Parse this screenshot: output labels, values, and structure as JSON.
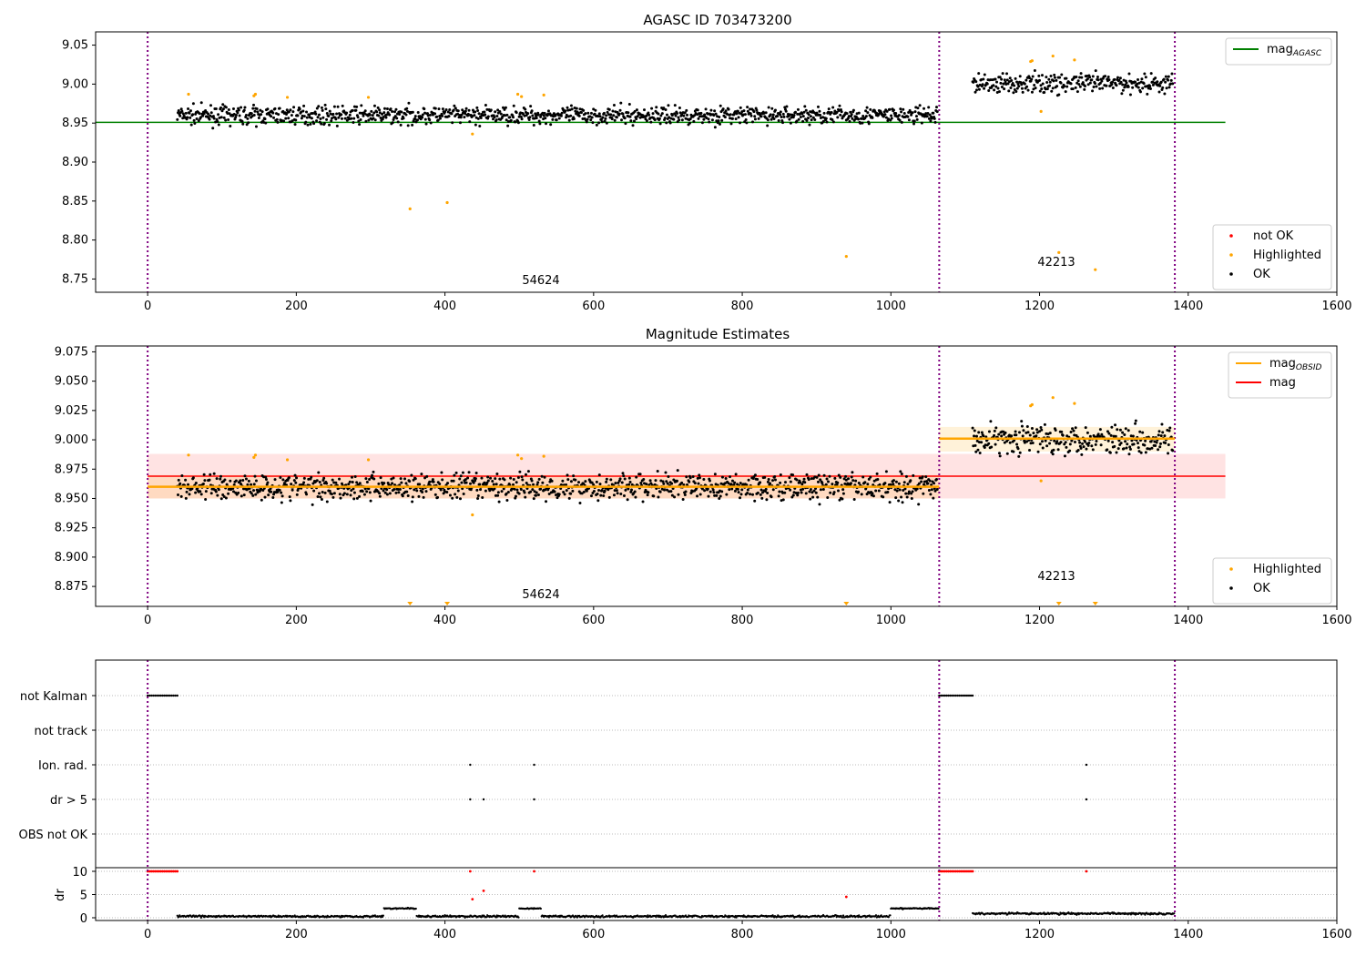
{
  "chart_data": [
    {
      "type": "scatter",
      "title": "AGASC ID 703473200",
      "xlim": [
        -70,
        1600
      ],
      "ylim": [
        8.733,
        9.067
      ],
      "xticks": [
        0,
        200,
        400,
        600,
        800,
        1000,
        1200,
        1400,
        1600
      ],
      "yticks": [
        8.75,
        8.8,
        8.85,
        8.9,
        8.95,
        9.0,
        9.05
      ],
      "legend_lines": [
        {
          "label": "mag",
          "sub": "AGASC",
          "color": "#008000"
        }
      ],
      "legend_points": [
        {
          "label": "not OK",
          "color": "#ff0000"
        },
        {
          "label": "Highlighted",
          "color": "#ffa500"
        },
        {
          "label": "OK",
          "color": "#000000"
        }
      ],
      "mag_agasc": 8.951,
      "obsids": [
        {
          "label": "54624",
          "start": 0,
          "end": 1065,
          "mean": 8.96,
          "std": 0.008,
          "first": 40
        },
        {
          "label": "42213",
          "start": 1065,
          "end": 1382,
          "mean": 9.001,
          "std": 0.009,
          "first": 1110
        }
      ],
      "highlighted": [
        [
          55,
          8.987
        ],
        [
          143,
          8.985
        ],
        [
          145,
          8.987
        ],
        [
          188,
          8.983
        ],
        [
          297,
          8.983
        ],
        [
          353,
          8.84
        ],
        [
          403,
          8.848
        ],
        [
          437,
          8.936
        ],
        [
          498,
          8.987
        ],
        [
          503,
          8.984
        ],
        [
          533,
          8.986
        ],
        [
          940,
          8.779
        ],
        [
          1188,
          9.029
        ],
        [
          1190,
          9.03
        ],
        [
          1202,
          8.965
        ],
        [
          1218,
          9.036
        ],
        [
          1226,
          8.784
        ],
        [
          1247,
          9.031
        ],
        [
          1275,
          8.762
        ]
      ],
      "vlines": [
        0,
        1065,
        1382
      ]
    },
    {
      "type": "scatter",
      "title": "Magnitude Estimates",
      "xlim": [
        -70,
        1600
      ],
      "ylim": [
        8.858,
        9.08
      ],
      "xticks": [
        0,
        200,
        400,
        600,
        800,
        1000,
        1200,
        1400,
        1600
      ],
      "yticks": [
        8.875,
        8.9,
        8.925,
        8.95,
        8.975,
        9.0,
        9.025,
        9.05,
        9.075
      ],
      "legend_lines": [
        {
          "label": "mag",
          "sub": "OBSID",
          "color": "#ffa500"
        },
        {
          "label": "mag",
          "sub": "",
          "color": "#ff0000"
        }
      ],
      "legend_points": [
        {
          "label": "Highlighted",
          "color": "#ffa500"
        },
        {
          "label": "OK",
          "color": "#000000"
        }
      ],
      "mag": {
        "value": 8.969,
        "low": 8.95,
        "high": 8.988,
        "end": 1450
      },
      "mag_obsid": [
        {
          "start": 0,
          "end": 1065,
          "value": 8.96,
          "low": 8.95,
          "high": 8.97
        },
        {
          "start": 1065,
          "end": 1382,
          "value": 9.001,
          "low": 8.99,
          "high": 9.011
        }
      ]
    },
    {
      "type": "scatter",
      "title": "",
      "xlim": [
        -70,
        1600
      ],
      "flag_labels": [
        "not Kalman",
        "not track",
        "Ion. rad.",
        "dr > 5",
        "OBS not OK"
      ],
      "flags": {
        "not Kalman": [
          [
            0,
            40
          ],
          [
            1065,
            1110
          ]
        ],
        "Ion. rad.": [
          434,
          520,
          1263
        ],
        "dr > 5": [
          434,
          452,
          520,
          1263
        ]
      },
      "ylabel": "dr",
      "dr_yticks": [
        0,
        5,
        10
      ],
      "dr_red": [
        [
          434,
          10
        ],
        [
          520,
          10
        ],
        [
          1263,
          10
        ],
        [
          437,
          4
        ],
        [
          452,
          5.8
        ],
        [
          940,
          4.5
        ]
      ],
      "dr_segments": [
        {
          "start": 40,
          "end": 318,
          "level": 0.3
        },
        {
          "start": 318,
          "end": 362,
          "level": 2
        },
        {
          "start": 362,
          "end": 500,
          "level": 0.3
        },
        {
          "start": 500,
          "end": 530,
          "level": 2
        },
        {
          "start": 530,
          "end": 1000,
          "level": 0.3
        },
        {
          "start": 1000,
          "end": 1065,
          "level": 2
        },
        {
          "start": 1110,
          "end": 1382,
          "level": 0.9
        }
      ]
    }
  ]
}
